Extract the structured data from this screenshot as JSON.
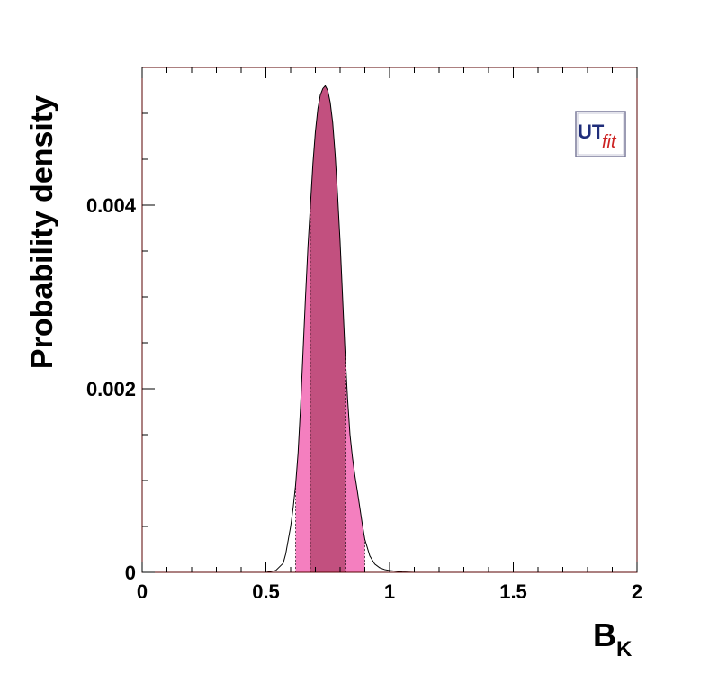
{
  "chart_data": {
    "type": "area",
    "title": "",
    "xlabel": "B",
    "xlabel_sub": "K",
    "ylabel": "Probability density",
    "xlim": [
      0,
      2
    ],
    "ylim": [
      0,
      0.0055
    ],
    "x_ticks": [
      "0",
      "0.5",
      "1",
      "1.5",
      "2"
    ],
    "y_ticks": [
      "0",
      "0.002",
      "0.004"
    ],
    "grid": false,
    "legend": "none",
    "logo": {
      "text_main": "UT",
      "text_sub": "fit",
      "placement": "top-right"
    },
    "series": [
      {
        "x": [
          0.5,
          0.54,
          0.57,
          0.58,
          0.59,
          0.6,
          0.61,
          0.62,
          0.63,
          0.64,
          0.65,
          0.66,
          0.67,
          0.68,
          0.69,
          0.7,
          0.71,
          0.72,
          0.73,
          0.74,
          0.75,
          0.76,
          0.77,
          0.78,
          0.79,
          0.8,
          0.81,
          0.82,
          0.83,
          0.84,
          0.85,
          0.86,
          0.87,
          0.88,
          0.89,
          0.9,
          0.92,
          0.94,
          0.96,
          0.98,
          1.0,
          1.05,
          1.1
        ],
        "y": [
          0.0,
          2e-05,
          0.0001,
          0.0002,
          0.00035,
          0.0005,
          0.0007,
          0.00095,
          0.0013,
          0.0018,
          0.0024,
          0.003,
          0.00355,
          0.004,
          0.00445,
          0.0048,
          0.00505,
          0.0052,
          0.00527,
          0.0053,
          0.00525,
          0.00512,
          0.0049,
          0.00455,
          0.0041,
          0.0036,
          0.003,
          0.0024,
          0.0019,
          0.0015,
          0.00125,
          0.00105,
          0.00088,
          0.0007,
          0.00052,
          0.00036,
          0.00018,
          9e-05,
          5e-05,
          3e-05,
          2e-05,
          5e-06,
          0.0
        ]
      }
    ],
    "bands": [
      {
        "x_from": 0.62,
        "x_to": 0.9,
        "color": "#f47fbf"
      },
      {
        "x_from": 0.68,
        "x_to": 0.82,
        "color": "#c2507f"
      }
    ],
    "colors": {
      "frame": "#5a0000",
      "curve": "#000000",
      "logo_blue": "#1f2d7a",
      "logo_red": "#cc2222"
    }
  }
}
